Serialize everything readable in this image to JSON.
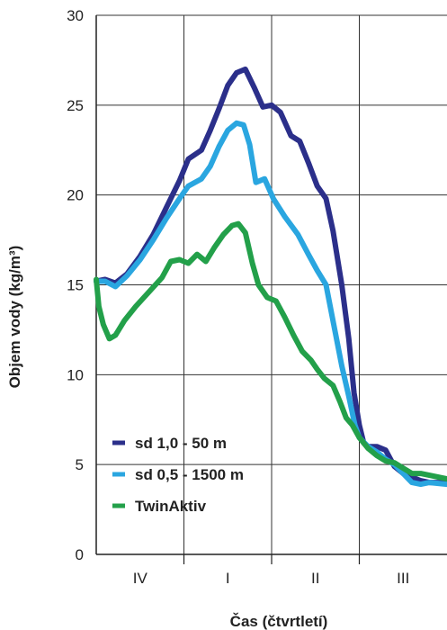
{
  "chart_data": {
    "type": "line",
    "title": "",
    "xlabel": "Čas (čtvrtletí)",
    "ylabel": "Objem vody (kg/m³)",
    "ylim": [
      0,
      30
    ],
    "yticks": [
      0,
      5,
      10,
      15,
      20,
      25,
      30
    ],
    "xlim": [
      0,
      4
    ],
    "xticks": [
      {
        "label": "IV",
        "x": 0.5
      },
      {
        "label": "I",
        "x": 1.5
      },
      {
        "label": "II",
        "x": 2.5
      },
      {
        "label": "III",
        "x": 3.5
      }
    ],
    "grid": true,
    "legend": "bottom-left",
    "series": [
      {
        "name": "sd 1,0 - 50 m",
        "color": "#2b2f8a",
        "points": [
          [
            0.0,
            15.2
          ],
          [
            0.1,
            15.3
          ],
          [
            0.22,
            15.1
          ],
          [
            0.35,
            15.6
          ],
          [
            0.5,
            16.6
          ],
          [
            0.65,
            17.8
          ],
          [
            0.8,
            19.3
          ],
          [
            0.95,
            20.8
          ],
          [
            1.05,
            22.0
          ],
          [
            1.2,
            22.5
          ],
          [
            1.3,
            23.6
          ],
          [
            1.4,
            24.8
          ],
          [
            1.5,
            26.1
          ],
          [
            1.6,
            26.8
          ],
          [
            1.7,
            27.0
          ],
          [
            1.8,
            26.0
          ],
          [
            1.9,
            24.9
          ],
          [
            2.0,
            25.0
          ],
          [
            2.1,
            24.6
          ],
          [
            2.22,
            23.3
          ],
          [
            2.32,
            23.0
          ],
          [
            2.42,
            21.8
          ],
          [
            2.52,
            20.5
          ],
          [
            2.62,
            19.8
          ],
          [
            2.7,
            18.0
          ],
          [
            2.8,
            15.0
          ],
          [
            2.88,
            12.0
          ],
          [
            2.94,
            9.0
          ],
          [
            3.0,
            7.2
          ],
          [
            3.05,
            6.2
          ],
          [
            3.1,
            6.0
          ],
          [
            3.2,
            6.0
          ],
          [
            3.3,
            5.8
          ],
          [
            3.4,
            4.9
          ],
          [
            3.5,
            4.5
          ],
          [
            3.6,
            4.3
          ],
          [
            3.7,
            4.1
          ],
          [
            3.8,
            4.0
          ],
          [
            4.0,
            4.0
          ]
        ]
      },
      {
        "name": "sd 0,5 - 1500 m",
        "color": "#2aa6e0",
        "points": [
          [
            0.0,
            15.2
          ],
          [
            0.1,
            15.2
          ],
          [
            0.22,
            14.9
          ],
          [
            0.35,
            15.5
          ],
          [
            0.5,
            16.4
          ],
          [
            0.65,
            17.5
          ],
          [
            0.8,
            18.7
          ],
          [
            0.95,
            19.8
          ],
          [
            1.05,
            20.5
          ],
          [
            1.2,
            20.9
          ],
          [
            1.3,
            21.6
          ],
          [
            1.4,
            22.7
          ],
          [
            1.5,
            23.6
          ],
          [
            1.6,
            24.0
          ],
          [
            1.68,
            23.9
          ],
          [
            1.75,
            22.8
          ],
          [
            1.82,
            20.7
          ],
          [
            1.92,
            20.9
          ],
          [
            2.02,
            19.8
          ],
          [
            2.15,
            18.8
          ],
          [
            2.3,
            17.8
          ],
          [
            2.42,
            16.7
          ],
          [
            2.52,
            15.8
          ],
          [
            2.62,
            15.0
          ],
          [
            2.72,
            12.5
          ],
          [
            2.8,
            10.5
          ],
          [
            2.88,
            8.8
          ],
          [
            2.95,
            7.2
          ],
          [
            3.0,
            6.5
          ],
          [
            3.1,
            6.0
          ],
          [
            3.2,
            5.7
          ],
          [
            3.3,
            5.3
          ],
          [
            3.4,
            5.0
          ],
          [
            3.5,
            4.5
          ],
          [
            3.6,
            4.0
          ],
          [
            3.7,
            3.9
          ],
          [
            3.8,
            4.0
          ],
          [
            4.0,
            3.9
          ]
        ]
      },
      {
        "name": "TwinAktiv",
        "color": "#23a04a",
        "points": [
          [
            0.0,
            15.3
          ],
          [
            0.03,
            13.8
          ],
          [
            0.08,
            12.8
          ],
          [
            0.15,
            12.0
          ],
          [
            0.22,
            12.2
          ],
          [
            0.32,
            13.0
          ],
          [
            0.45,
            13.8
          ],
          [
            0.6,
            14.6
          ],
          [
            0.75,
            15.4
          ],
          [
            0.85,
            16.3
          ],
          [
            0.95,
            16.4
          ],
          [
            1.05,
            16.2
          ],
          [
            1.15,
            16.7
          ],
          [
            1.25,
            16.3
          ],
          [
            1.35,
            17.1
          ],
          [
            1.45,
            17.8
          ],
          [
            1.55,
            18.3
          ],
          [
            1.62,
            18.4
          ],
          [
            1.7,
            17.9
          ],
          [
            1.78,
            16.2
          ],
          [
            1.85,
            15.0
          ],
          [
            1.95,
            14.3
          ],
          [
            2.05,
            14.1
          ],
          [
            2.15,
            13.2
          ],
          [
            2.25,
            12.2
          ],
          [
            2.35,
            11.3
          ],
          [
            2.45,
            10.8
          ],
          [
            2.52,
            10.3
          ],
          [
            2.6,
            9.8
          ],
          [
            2.7,
            9.4
          ],
          [
            2.78,
            8.5
          ],
          [
            2.85,
            7.6
          ],
          [
            2.92,
            7.2
          ],
          [
            3.0,
            6.5
          ],
          [
            3.1,
            5.9
          ],
          [
            3.2,
            5.5
          ],
          [
            3.3,
            5.2
          ],
          [
            3.4,
            5.1
          ],
          [
            3.5,
            4.8
          ],
          [
            3.6,
            4.5
          ],
          [
            3.7,
            4.5
          ],
          [
            3.8,
            4.4
          ],
          [
            4.0,
            4.2
          ]
        ]
      }
    ]
  }
}
